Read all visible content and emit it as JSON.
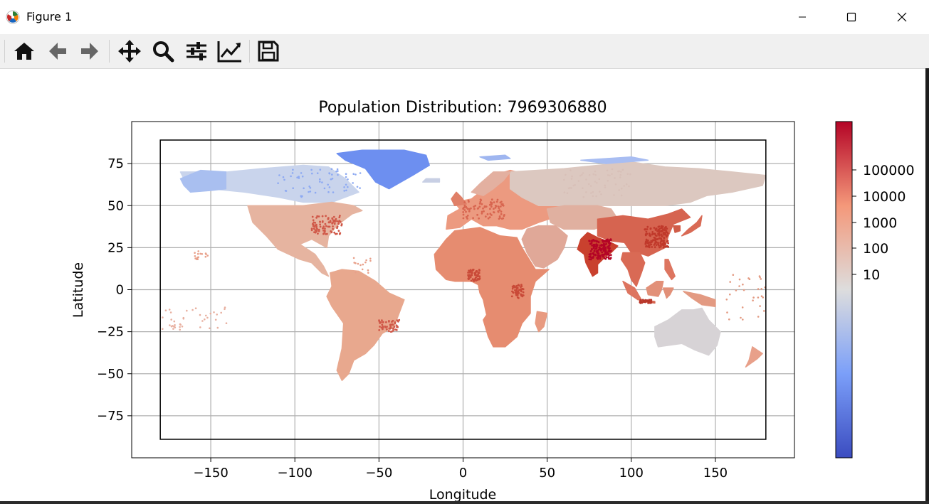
{
  "window": {
    "title": "Figure 1",
    "minimize_glyph": "—",
    "maximize_glyph": "☐",
    "close_glyph": "✕"
  },
  "toolbar": {
    "buttons": [
      {
        "name": "home",
        "icon": "home-icon"
      },
      {
        "name": "back",
        "icon": "arrow-left-icon"
      },
      {
        "name": "forward",
        "icon": "arrow-right-icon"
      },
      {
        "name": "pan",
        "icon": "move-icon"
      },
      {
        "name": "zoom",
        "icon": "magnifier-icon"
      },
      {
        "name": "configure-subplots",
        "icon": "sliders-icon"
      },
      {
        "name": "edit-axis",
        "icon": "line-chart-icon"
      },
      {
        "name": "save",
        "icon": "floppy-disk-icon"
      }
    ]
  },
  "chart_data": {
    "type": "scatter",
    "title": "Population Distribution: 7969306880",
    "xlabel": "Longitude",
    "ylabel": "Latitude",
    "xlim": [
      -197,
      197
    ],
    "ylim": [
      -100,
      100
    ],
    "xticks": [
      -150,
      -100,
      -50,
      0,
      50,
      100,
      150
    ],
    "yticks": [
      75,
      50,
      25,
      0,
      -25,
      -50,
      -75
    ],
    "xtick_labels": [
      "−150",
      "−100",
      "−50",
      "0",
      "50",
      "100",
      "150"
    ],
    "ytick_labels": [
      "75",
      "50",
      "25",
      "0",
      "−25",
      "−50",
      "−75"
    ],
    "grid": true,
    "frame_box": {
      "lon": [
        -180,
        180
      ],
      "lat": [
        -89,
        89
      ]
    },
    "colormap": "coolwarm",
    "colorbar": {
      "scale": "log",
      "tick_labels": [
        "100000",
        "10000",
        "1000",
        "100",
        "10"
      ],
      "low_color": "#3b4cc0",
      "mid_color": "#dddddd",
      "high_color": "#b40426"
    },
    "regions": [
      {
        "name": "Greenland",
        "level": "very-low"
      },
      {
        "name": "Northern Canada",
        "level": "low"
      },
      {
        "name": "United States",
        "level": "medium"
      },
      {
        "name": "Central America",
        "level": "medium"
      },
      {
        "name": "South America",
        "level": "medium"
      },
      {
        "name": "Europe",
        "level": "medium-high"
      },
      {
        "name": "Africa",
        "level": "medium-high"
      },
      {
        "name": "Middle East",
        "level": "medium"
      },
      {
        "name": "Russia / Siberia",
        "level": "low-medium"
      },
      {
        "name": "India",
        "level": "high"
      },
      {
        "name": "East China",
        "level": "high"
      },
      {
        "name": "Southeast Asia",
        "level": "high"
      },
      {
        "name": "Indonesia",
        "level": "high"
      },
      {
        "name": "Australia",
        "level": "low-medium"
      },
      {
        "name": "New Zealand",
        "level": "medium"
      }
    ]
  }
}
